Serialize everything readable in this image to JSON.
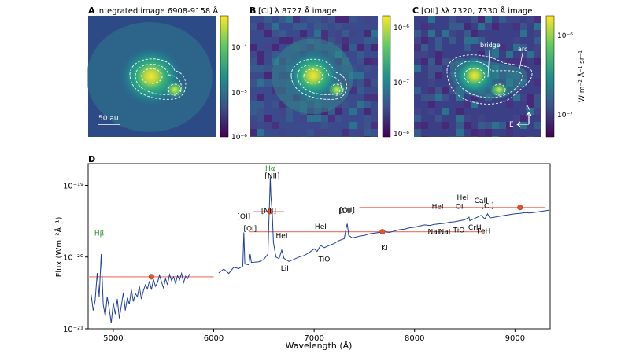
{
  "figure": {
    "panels": [
      {
        "letter": "A",
        "title": "integrated image 6908-9158 Å",
        "scalebar": "50 au",
        "cbar_ticks": [
          "10⁻⁴",
          "10⁻⁵",
          "10⁻⁶"
        ]
      },
      {
        "letter": "B",
        "title": "[CI] λ 8727 Å image",
        "cbar_ticks": [
          "10⁻⁶",
          "10⁻⁷",
          "10⁻⁸"
        ]
      },
      {
        "letter": "C",
        "title": "[OII] λλ 7320, 7330 Å image",
        "cbar_ticks": [
          "10⁻⁶",
          "10⁻⁷"
        ],
        "cbar_label": "W m⁻² Å⁻¹ sr⁻¹",
        "annotations": [
          "bridge",
          "arc"
        ],
        "compass": [
          "N",
          "E"
        ]
      }
    ],
    "spectrum_panel_letter": "D"
  },
  "colors": {
    "spectrum": "#1f3f99",
    "segments": "#f08070",
    "markers": "#e2542e",
    "green_labels": "#2e8b2e",
    "contours": "#ffffff"
  },
  "chart_data": {
    "type": "line",
    "xlabel": "Wavelength (Å)",
    "ylabel": "Flux (Wm⁻²Å⁻¹)",
    "xlim": [
      4750,
      9350
    ],
    "ylim": [
      1e-21,
      2e-19
    ],
    "yscale": "log",
    "x_ticks": [
      5000,
      6000,
      7000,
      8000,
      9000
    ],
    "y_ticks": [
      {
        "value": 1e-21,
        "label": "10⁻²¹"
      },
      {
        "value": 1e-20,
        "label": "10⁻²⁰"
      },
      {
        "value": 1e-19,
        "label": "10⁻¹⁹"
      }
    ],
    "series": [
      {
        "values_x": [
          4780,
          4800,
          4820,
          4840,
          4860,
          4880,
          4900,
          4920,
          4940,
          4960,
          4980,
          5000,
          5020,
          5040,
          5060,
          5080,
          5100,
          5120,
          5140,
          5160,
          5180,
          5200,
          5220,
          5240,
          5260,
          5280,
          5300,
          5320,
          5340,
          5360,
          5380,
          5400,
          5420,
          5440,
          5460,
          5480,
          5500,
          5520,
          5540,
          5560,
          5580,
          5600,
          5620,
          5640,
          5660,
          5680,
          5700,
          5720,
          5740,
          5760
        ],
        "values_y": [
          3e-21,
          1.8e-21,
          2.5e-21,
          6e-21,
          2.8e-21,
          1.1e-20,
          2.2e-21,
          1.5e-21,
          2.8e-21,
          1.9e-21,
          1.2e-21,
          2.3e-21,
          1.6e-21,
          2.6e-21,
          1.4e-21,
          2.1e-21,
          3.2e-21,
          1.8e-21,
          2.7e-21,
          2.2e-21,
          3.5e-21,
          2.4e-21,
          3.1e-21,
          2.8e-21,
          3.9e-21,
          2.6e-21,
          3.4e-21,
          4.1e-21,
          3.6e-21,
          4.6e-21,
          3.5e-21,
          4.9e-21,
          3.9e-21,
          4.4e-21,
          5.6e-21,
          4.5e-21,
          3.7e-21,
          5e-21,
          4.1e-21,
          5.7e-21,
          4.7e-21,
          5.3e-21,
          4.3e-21,
          5.5e-21,
          4.8e-21,
          5.9e-21,
          4.4e-21,
          5.4e-21,
          5e-21,
          5.8e-21
        ]
      },
      {
        "values_x": [
          6050,
          6100,
          6150,
          6200,
          6250,
          6290,
          6300,
          6310,
          6350,
          6363,
          6375,
          6450,
          6500,
          6540,
          6548,
          6556,
          6563,
          6570,
          6583,
          6595,
          6620,
          6650,
          6678,
          6700,
          6750,
          6800,
          6850,
          6900,
          6950,
          7000,
          7030,
          7065,
          7100,
          7150,
          7200,
          7250,
          7300,
          7320,
          7330,
          7345,
          7380,
          7420,
          7450,
          7500,
          7550,
          7600,
          7650,
          7700,
          7750,
          7800,
          7850,
          7900,
          7950,
          8000,
          8050,
          8100,
          8150,
          8200,
          8250,
          8300,
          8350,
          8400,
          8450,
          8500,
          8542,
          8550,
          8600,
          8662,
          8700,
          8727,
          8750,
          8800,
          8850,
          8900,
          8950,
          9000,
          9050,
          9100,
          9150,
          9200,
          9250,
          9300,
          9340
        ],
        "values_y": [
          6e-21,
          6.8e-21,
          5.9e-21,
          7.2e-21,
          6.9e-21,
          7.5e-21,
          2.2e-20,
          8e-21,
          7.8e-21,
          1.1e-20,
          8.4e-21,
          8.6e-21,
          9.3e-21,
          1.1e-20,
          2.6e-20,
          6e-20,
          1.3e-19,
          7e-20,
          4.2e-20,
          1.6e-20,
          1e-20,
          9.5e-21,
          1.25e-20,
          9.6e-21,
          8.7e-21,
          9.3e-21,
          1e-20,
          1.05e-20,
          1.15e-20,
          1.3e-20,
          1.2e-20,
          1.45e-20,
          1.35e-20,
          1.45e-20,
          1.55e-20,
          1.7e-20,
          1.8e-20,
          2.6e-20,
          2.9e-20,
          2e-20,
          1.85e-20,
          1.9e-20,
          1.95e-20,
          2e-20,
          2.1e-20,
          2.15e-20,
          2.2e-20,
          2.25e-20,
          2.2e-20,
          2.3e-20,
          2.4e-20,
          2.45e-20,
          2.55e-20,
          2.6e-20,
          2.7e-20,
          2.8e-20,
          2.75e-20,
          2.85e-20,
          2.9e-20,
          2.95e-20,
          3.05e-20,
          3.1e-20,
          3.2e-20,
          3.3e-20,
          3.6e-20,
          3.2e-20,
          3.45e-20,
          3.8e-20,
          3.4e-20,
          4e-20,
          3.5e-20,
          3.6e-20,
          3.7e-20,
          3.8e-20,
          3.9e-20,
          4e-20,
          4.05e-20,
          4.15e-20,
          4.1e-20,
          4.2e-20,
          4.3e-20,
          4.4e-20,
          4.5e-20
        ]
      }
    ],
    "continuum_segments": [
      {
        "x0": 4750,
        "x1": 6000,
        "y": 5.3e-21
      },
      {
        "x0": 6400,
        "x1": 6700,
        "y": 4.3e-20
      },
      {
        "x0": 6350,
        "x1": 8700,
        "y": 2.25e-20
      },
      {
        "x0": 7450,
        "x1": 9300,
        "y": 4.9e-20
      }
    ],
    "points": [
      {
        "x": 5380,
        "y": 5.3e-21
      },
      {
        "x": 6560,
        "y": 4.3e-20
      },
      {
        "x": 7680,
        "y": 2.25e-20
      },
      {
        "x": 9050,
        "y": 4.9e-20
      }
    ],
    "line_labels": [
      {
        "text": "Hβ",
        "x": 4861,
        "y": 2e-20,
        "color": "green"
      },
      {
        "text": "Hα",
        "x": 6563,
        "y": 1.6e-19,
        "color": "green"
      },
      {
        "text": "[NII]",
        "x": 6583,
        "y": 1.25e-19
      },
      {
        "text": "[NII]",
        "x": 6548,
        "y": 4.1e-20
      },
      {
        "text": "[OI]",
        "x": 6300,
        "y": 3.4e-20
      },
      {
        "text": "[OI]",
        "x": 6363,
        "y": 2.3e-20
      },
      {
        "text": "HeI",
        "x": 6678,
        "y": 1.85e-20
      },
      {
        "text": "LiI",
        "x": 6708,
        "y": 6.5e-21
      },
      {
        "text": "HeI",
        "x": 7065,
        "y": 2.45e-20
      },
      {
        "text": "TiO",
        "x": 7100,
        "y": 8.6e-21
      },
      {
        "text": "[OII]",
        "x": 7320,
        "y": 4.1e-20
      },
      {
        "text": "[OII]",
        "x": 7330,
        "y": 4.2e-20
      },
      {
        "text": "KI",
        "x": 7700,
        "y": 1.25e-20
      },
      {
        "text": "HeI",
        "x": 8230,
        "y": 4.7e-20
      },
      {
        "text": "NaI",
        "x": 8190,
        "y": 2.1e-20
      },
      {
        "text": "NaI",
        "x": 8300,
        "y": 2.1e-20
      },
      {
        "text": "TiO",
        "x": 8440,
        "y": 2.2e-20
      },
      {
        "text": "OI",
        "x": 8446,
        "y": 4.7e-20
      },
      {
        "text": "HeI",
        "x": 8480,
        "y": 6.3e-20
      },
      {
        "text": "CrH",
        "x": 8600,
        "y": 2.4e-20
      },
      {
        "text": "CaII",
        "x": 8662,
        "y": 5.7e-20
      },
      {
        "text": "[CI]",
        "x": 8727,
        "y": 4.8e-20
      },
      {
        "text": "FeH",
        "x": 8690,
        "y": 2.15e-20
      }
    ]
  }
}
